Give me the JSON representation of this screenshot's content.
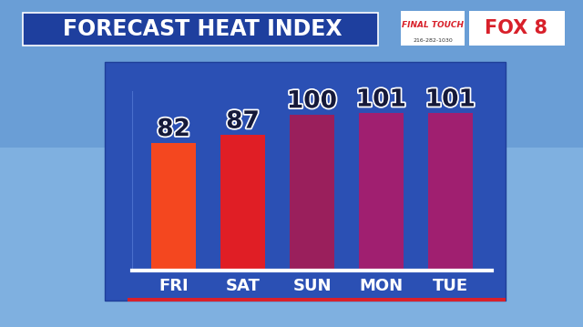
{
  "chart_data": {
    "type": "bar",
    "title": "FORECAST HEAT INDEX",
    "categories": [
      "FRI",
      "SAT",
      "SUN",
      "MON",
      "TUE"
    ],
    "values": [
      82,
      87,
      100,
      101,
      101
    ],
    "colors": [
      "#f4471f",
      "#e01e25",
      "#9a1f5c",
      "#a01f70",
      "#a01f70"
    ],
    "ylim": [
      0,
      115
    ],
    "data_labels": true,
    "tick_labels": "x",
    "grid": false,
    "annotations": [
      "FINAL TOUCH",
      "216-282-1030",
      "FOX 8"
    ]
  }
}
